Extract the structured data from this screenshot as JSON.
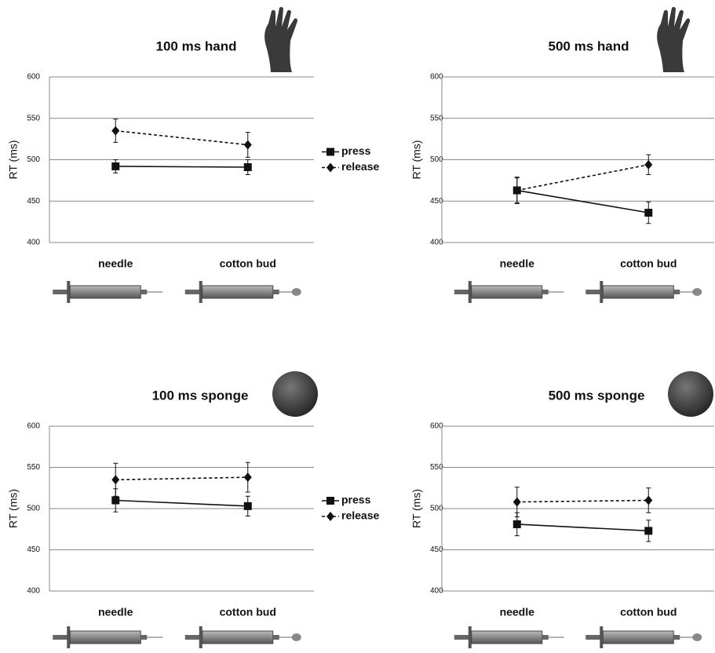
{
  "chart_data": [
    {
      "type": "line",
      "title": "100 ms hand",
      "ylabel": "RT (ms)",
      "categories": [
        "needle",
        "cotton bud"
      ],
      "ylim": [
        400,
        600
      ],
      "yticks": [
        400,
        450,
        500,
        550,
        600
      ],
      "grid": true,
      "legend": "right",
      "series": [
        {
          "name": "press",
          "color": "#111111",
          "style": "solid",
          "marker": "square",
          "values": [
            492,
            491
          ],
          "errors": [
            8,
            9
          ]
        },
        {
          "name": "release",
          "color": "#111111",
          "style": "dashed",
          "marker": "diamond",
          "values": [
            535,
            518
          ],
          "errors": [
            14,
            15
          ]
        }
      ]
    },
    {
      "type": "line",
      "title": "500 ms hand",
      "ylabel": "RT (ms)",
      "categories": [
        "needle",
        "cotton bud"
      ],
      "ylim": [
        400,
        600
      ],
      "yticks": [
        400,
        450,
        500,
        550,
        600
      ],
      "grid": true,
      "series": [
        {
          "color": "#111111",
          "style": "solid",
          "marker": "square",
          "values": [
            463,
            436
          ],
          "errors": [
            16,
            13
          ]
        },
        {
          "color": "#111111",
          "style": "dashed",
          "marker": "diamond",
          "values": [
            463,
            494
          ],
          "errors": [
            15,
            12
          ]
        }
      ]
    },
    {
      "type": "line",
      "title": "100 ms sponge",
      "ylabel": "RT (ms)",
      "categories": [
        "needle",
        "cotton bud"
      ],
      "ylim": [
        400,
        600
      ],
      "yticks": [
        400,
        450,
        500,
        550,
        600
      ],
      "grid": true,
      "legend": "right",
      "series": [
        {
          "name": "press",
          "color": "#111111",
          "style": "solid",
          "marker": "square",
          "values": [
            510,
            503
          ],
          "errors": [
            14,
            12
          ]
        },
        {
          "name": "release",
          "color": "#111111",
          "style": "dashed",
          "marker": "diamond",
          "values": [
            535,
            538
          ],
          "errors": [
            20,
            18
          ]
        }
      ]
    },
    {
      "type": "line",
      "title": "500 ms sponge",
      "ylabel": "RT (ms)",
      "categories": [
        "needle",
        "cotton bud"
      ],
      "ylim": [
        400,
        600
      ],
      "yticks": [
        400,
        450,
        500,
        550,
        600
      ],
      "grid": true,
      "series": [
        {
          "color": "#111111",
          "style": "solid",
          "marker": "square",
          "values": [
            481,
            473
          ],
          "errors": [
            14,
            13
          ]
        },
        {
          "color": "#111111",
          "style": "dashed",
          "marker": "diamond",
          "values": [
            508,
            510
          ],
          "errors": [
            18,
            15
          ]
        }
      ]
    }
  ]
}
